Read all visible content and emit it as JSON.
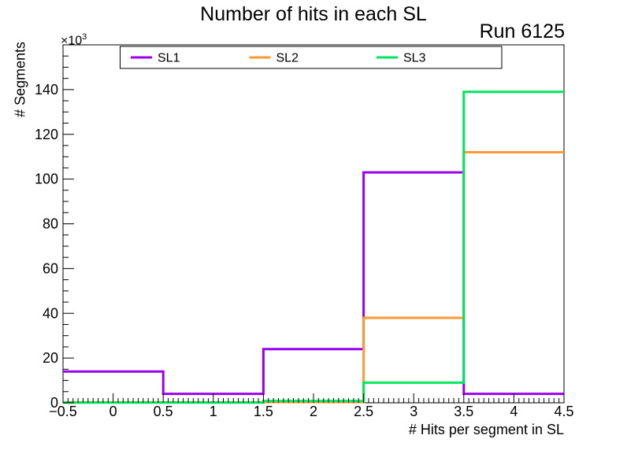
{
  "chart": {
    "title": "Number of hits in each SL",
    "annotation": "Run 6125",
    "xlabel": "# Hits per segment in SL",
    "ylabel": "# Segments",
    "y_multiplier": {
      "base": "×10",
      "exp": "3"
    }
  },
  "chart_data": {
    "type": "step-histogram",
    "title": "Number of hits in each SL",
    "annotation": "Run 6125",
    "xlabel": "# Hits per segment in SL",
    "ylabel": "# Segments",
    "y_unit": "×10³ segments",
    "xlim": [
      -0.5,
      4.5
    ],
    "ylim": [
      0,
      160
    ],
    "grid": false,
    "legend_position": "top",
    "bin_edges": [
      -0.5,
      0.5,
      1.5,
      2.5,
      3.5,
      4.5
    ],
    "bin_centers": [
      0,
      1,
      2,
      3,
      4
    ],
    "series": [
      {
        "name": "SL1",
        "color": "#9900ee",
        "values_thousands": [
          14,
          4,
          24,
          103,
          4
        ]
      },
      {
        "name": "SL2",
        "color": "#ff9933",
        "values_thousands": [
          0.2,
          0.2,
          0.3,
          38,
          112
        ]
      },
      {
        "name": "SL3",
        "color": "#00e65e",
        "values_thousands": [
          0.1,
          0.1,
          0.8,
          9,
          139
        ]
      }
    ],
    "x_ticks": {
      "values": [
        -0.5,
        0,
        0.5,
        1,
        1.5,
        2,
        2.5,
        3,
        3.5,
        4,
        4.5
      ],
      "labels": [
        "−0.5",
        "0",
        "0.5",
        "1",
        "1.5",
        "2",
        "2.5",
        "3",
        "3.5",
        "4",
        "4.5"
      ]
    },
    "y_ticks": {
      "values": [
        0,
        20,
        40,
        60,
        80,
        100,
        120,
        140
      ],
      "labels": [
        "0",
        "20",
        "40",
        "60",
        "80",
        "100",
        "120",
        "140"
      ]
    },
    "frame_color": "#000000",
    "background_color": "#ffffff"
  }
}
